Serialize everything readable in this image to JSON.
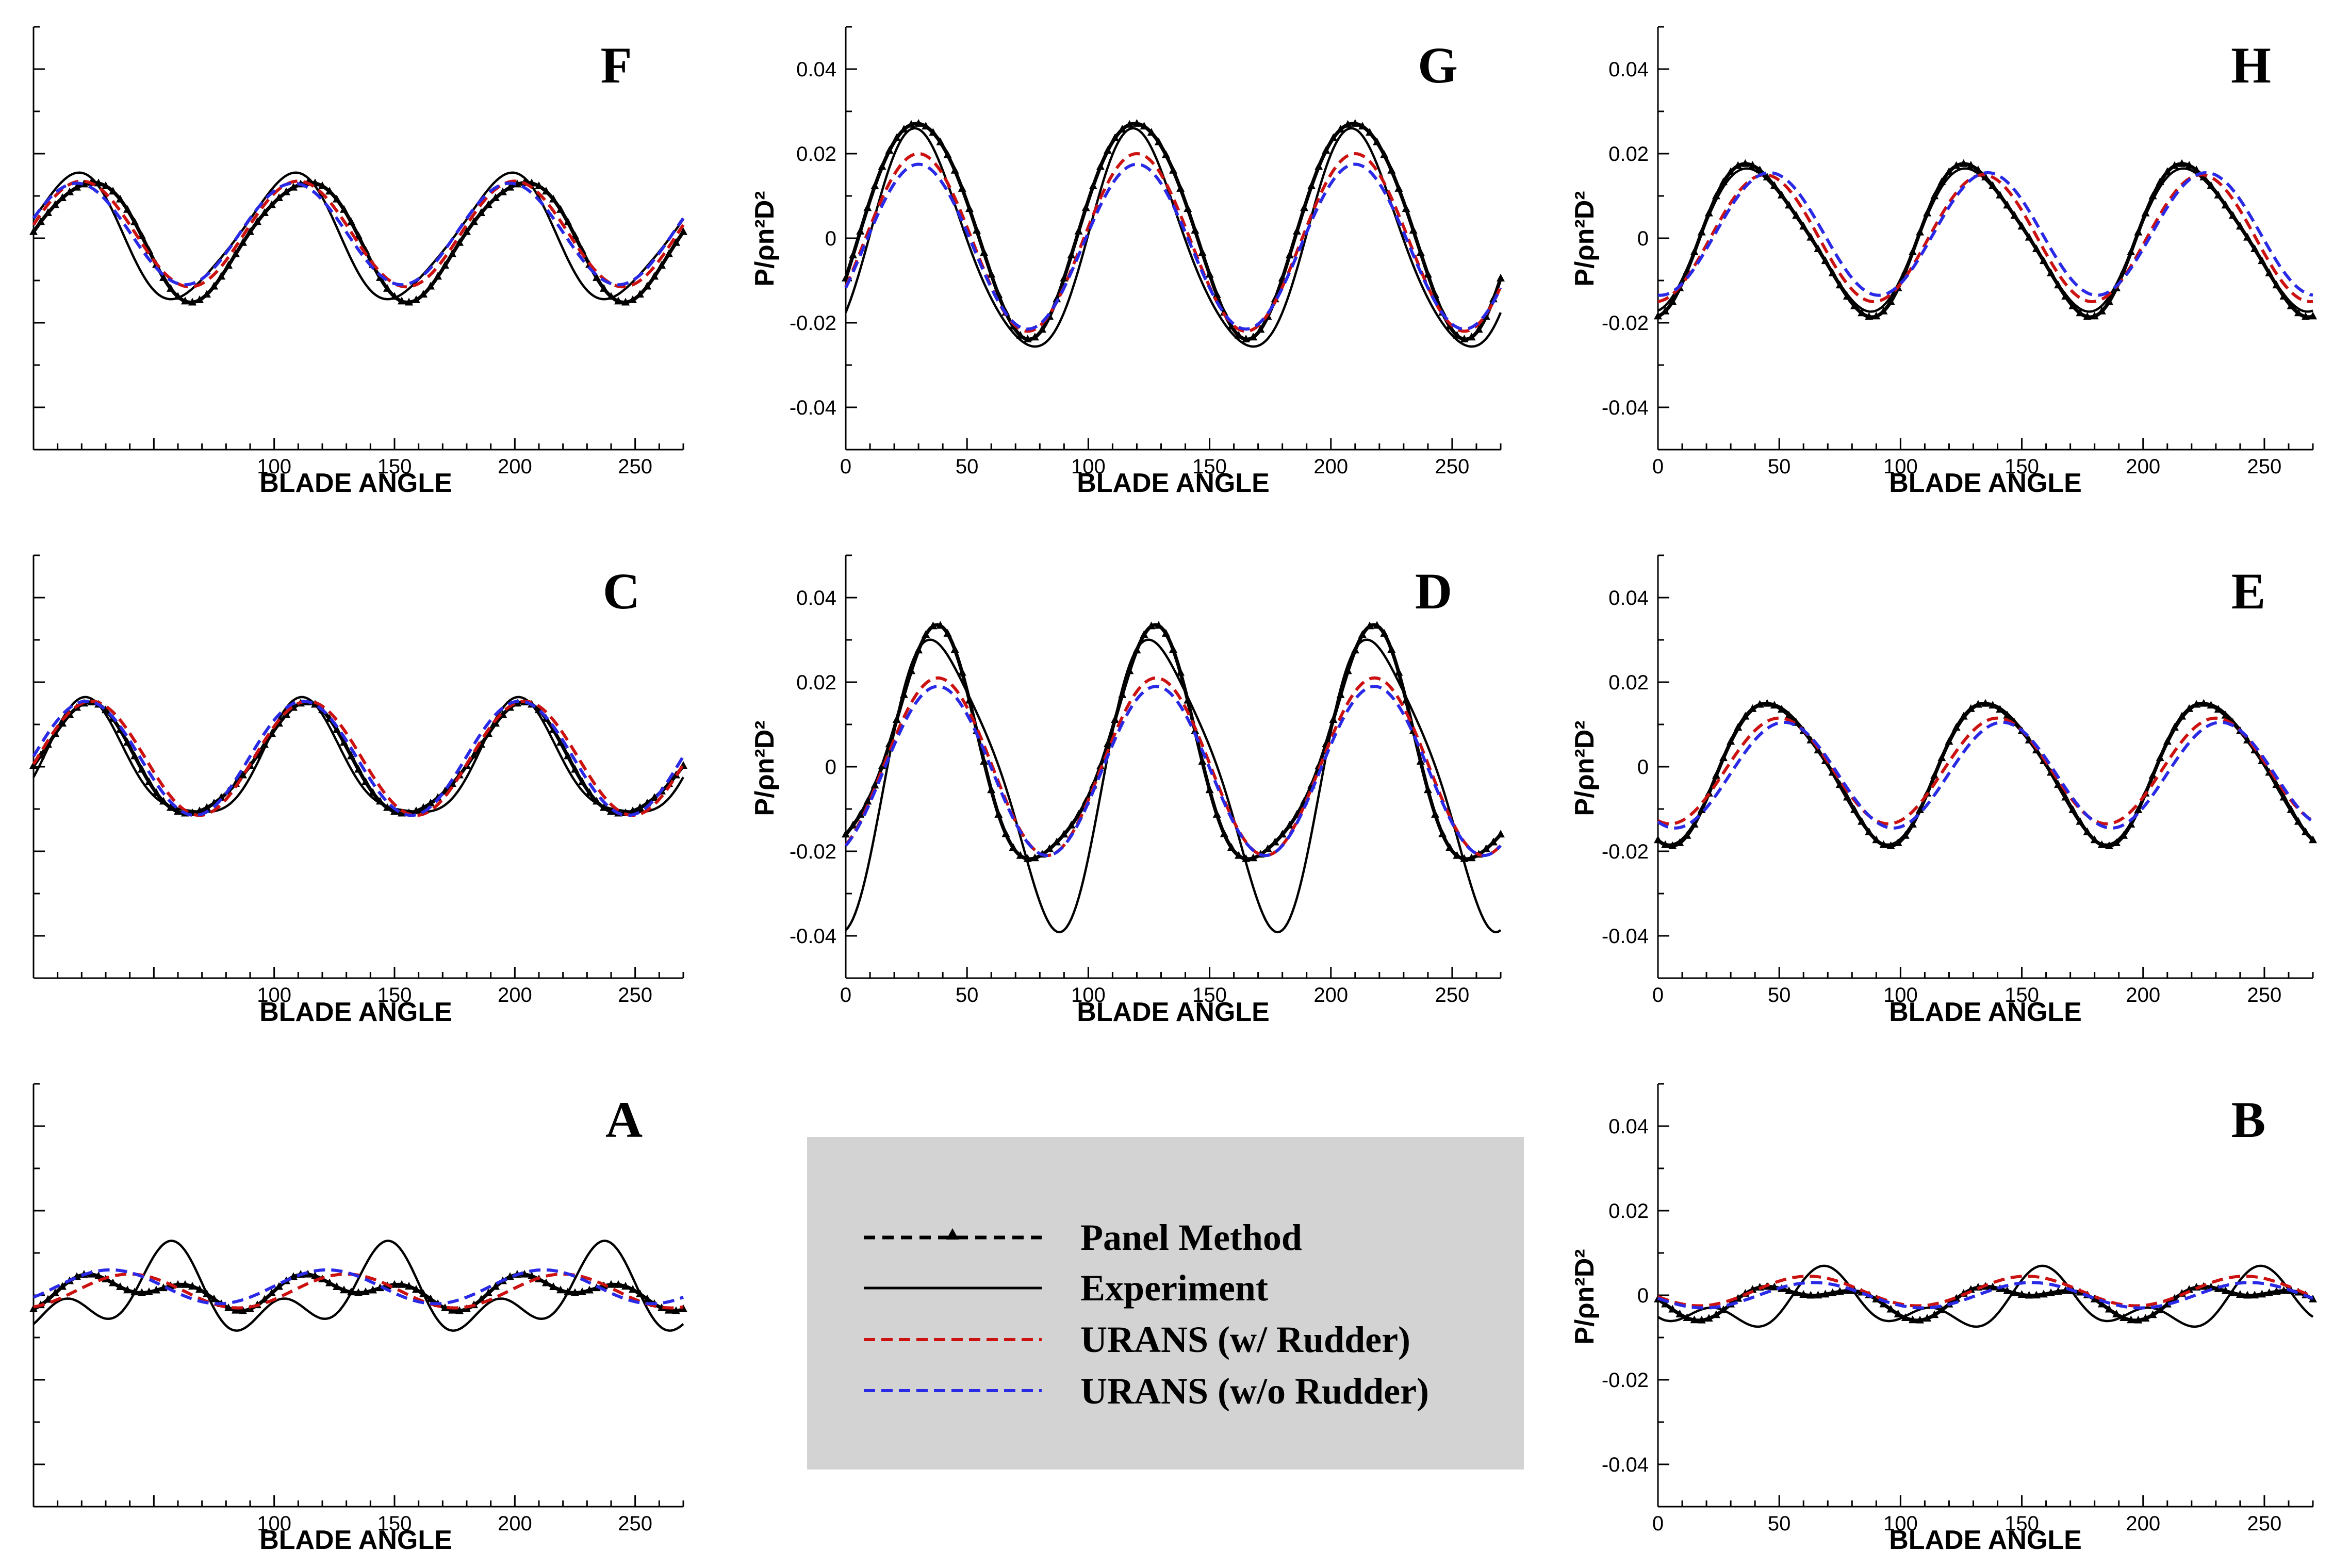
{
  "figure": {
    "legend": [
      {
        "key": "panel",
        "label": "Panel Method",
        "color": "#000000",
        "style": "dashed-triangle"
      },
      {
        "key": "exp",
        "label": "Experiment",
        "color": "#000000",
        "style": "solid"
      },
      {
        "key": "urans_r",
        "label": "URANS (w/ Rudder)",
        "color": "#cc1111",
        "style": "dashed"
      },
      {
        "key": "urans_nr",
        "label": "URANS (w/o Rudder)",
        "color": "#2a2ae6",
        "style": "dashed"
      }
    ]
  },
  "chart_data": [
    {
      "type": "line",
      "id": "F",
      "title": "F",
      "xlabel": "BLADE ANGLE",
      "ylabel": "",
      "xlim": [
        0,
        270
      ],
      "ylim": [
        -0.05,
        0.05
      ],
      "xticks": [
        100,
        150,
        200,
        250
      ],
      "yticks": [],
      "period": 90,
      "series": [
        {
          "name": "Panel Method",
          "harmonics": [
            [
              0.0,
              0
            ],
            [
              0.014,
              22
            ],
            [
              0.0015,
              84
            ]
          ]
        },
        {
          "name": "Experiment",
          "harmonics": [
            [
              0.0,
              0
            ],
            [
              0.0145,
              16
            ],
            [
              0.002,
              70
            ]
          ]
        },
        {
          "name": "URANS (w/ Rudder)",
          "harmonics": [
            [
              0.001,
              0
            ],
            [
              0.0125,
              20
            ]
          ]
        },
        {
          "name": "URANS (w/o Rudder)",
          "harmonics": [
            [
              0.001,
              0
            ],
            [
              0.012,
              18
            ]
          ]
        }
      ]
    },
    {
      "type": "line",
      "id": "G",
      "title": "G",
      "xlabel": "BLADE ANGLE",
      "ylabel": "P/ρn²D²",
      "xlim": [
        0,
        270
      ],
      "ylim": [
        -0.05,
        0.05
      ],
      "xticks": [
        0,
        50,
        100,
        150,
        200,
        250
      ],
      "yticks": [
        -0.04,
        -0.02,
        0,
        0.02,
        0.04
      ],
      "period": 90,
      "series": [
        {
          "name": "Panel Method",
          "harmonics": [
            [
              0.003,
              0
            ],
            [
              0.0255,
              30
            ],
            [
              0.0015,
              100
            ]
          ]
        },
        {
          "name": "Experiment",
          "harmonics": [
            [
              -0.002,
              0
            ],
            [
              0.0255,
              30
            ],
            [
              0.003,
              70
            ]
          ]
        },
        {
          "name": "URANS (w/ Rudder)",
          "harmonics": [
            [
              -0.001,
              0
            ],
            [
              0.021,
              30
            ]
          ]
        },
        {
          "name": "URANS (w/o Rudder)",
          "harmonics": [
            [
              -0.002,
              0
            ],
            [
              0.0195,
              30
            ]
          ]
        }
      ]
    },
    {
      "type": "line",
      "id": "H",
      "title": "H",
      "xlabel": "BLADE ANGLE",
      "ylabel": "P/ρn²D²",
      "xlim": [
        0,
        270
      ],
      "ylim": [
        -0.05,
        0.05
      ],
      "xticks": [
        0,
        50,
        100,
        150,
        200,
        250
      ],
      "yticks": [
        -0.04,
        -0.02,
        0,
        0.02,
        0.04
      ],
      "period": 90,
      "series": [
        {
          "name": "Panel Method",
          "harmonics": [
            [
              0.0,
              0
            ],
            [
              0.0175,
              40
            ],
            [
              0.0025,
              72
            ]
          ]
        },
        {
          "name": "Experiment",
          "harmonics": [
            [
              0.0,
              0
            ],
            [
              0.0165,
              40
            ],
            [
              0.002,
              72
            ]
          ]
        },
        {
          "name": "URANS (w/ Rudder)",
          "harmonics": [
            [
              0.0,
              0
            ],
            [
              0.015,
              44
            ]
          ]
        },
        {
          "name": "URANS (w/o Rudder)",
          "harmonics": [
            [
              0.001,
              0
            ],
            [
              0.0145,
              46
            ]
          ]
        }
      ]
    },
    {
      "type": "line",
      "id": "C",
      "title": "C",
      "xlabel": "BLADE ANGLE",
      "ylabel": "",
      "xlim": [
        0,
        270
      ],
      "ylim": [
        -0.05,
        0.05
      ],
      "xticks": [
        100,
        150,
        200,
        250
      ],
      "yticks": [],
      "period": 90,
      "series": [
        {
          "name": "Panel Method",
          "harmonics": [
            [
              0.001,
              0
            ],
            [
              0.013,
              22
            ],
            [
              0.0015,
              72
            ]
          ]
        },
        {
          "name": "Experiment",
          "harmonics": [
            [
              0.0,
              0
            ],
            [
              0.0135,
              22
            ],
            [
              0.003,
              66
            ]
          ]
        },
        {
          "name": "URANS (w/ Rudder)",
          "harmonics": [
            [
              0.002,
              0
            ],
            [
              0.0135,
              24
            ]
          ]
        },
        {
          "name": "URANS (w/o Rudder)",
          "harmonics": [
            [
              0.002,
              0
            ],
            [
              0.0135,
              22
            ]
          ]
        }
      ]
    },
    {
      "type": "line",
      "id": "D",
      "title": "D",
      "xlabel": "BLADE ANGLE",
      "ylabel": "P/ρn²D²",
      "xlim": [
        0,
        270
      ],
      "ylim": [
        -0.05,
        0.05
      ],
      "xticks": [
        0,
        50,
        100,
        150,
        200,
        250
      ],
      "yticks": [
        -0.04,
        -0.02,
        0,
        0.02,
        0.04
      ],
      "period": 90,
      "series": [
        {
          "name": "Panel Method",
          "harmonics": [
            [
              0.002,
              0
            ],
            [
              0.027,
              36
            ],
            [
              0.005,
              85
            ]
          ]
        },
        {
          "name": "Experiment",
          "harmonics": [
            [
              -0.002,
              0
            ],
            [
              0.033,
              40
            ],
            [
              0.006,
              70
            ]
          ]
        },
        {
          "name": "URANS (w/ Rudder)",
          "harmonics": [
            [
              0.0,
              0
            ],
            [
              0.021,
              38
            ]
          ]
        },
        {
          "name": "URANS (w/o Rudder)",
          "harmonics": [
            [
              -0.001,
              0
            ],
            [
              0.02,
              38
            ]
          ]
        }
      ]
    },
    {
      "type": "line",
      "id": "E",
      "title": "E",
      "xlabel": "BLADE ANGLE",
      "ylabel": "P/ρn²D²",
      "xlim": [
        0,
        270
      ],
      "ylim": [
        -0.05,
        0.05
      ],
      "xticks": [
        0,
        50,
        100,
        150,
        200,
        250
      ],
      "yticks": [
        -0.04,
        -0.02,
        0,
        0.02,
        0.04
      ],
      "period": 90,
      "series": [
        {
          "name": "Panel Method",
          "harmonics": [
            [
              -0.001,
              0
            ],
            [
              0.0165,
              48
            ],
            [
              0.002,
              78
            ]
          ]
        },
        {
          "name": "Experiment",
          "harmonics": [
            [
              -0.001,
              0
            ],
            [
              0.0165,
              48
            ],
            [
              0.0015,
              78
            ]
          ]
        },
        {
          "name": "URANS (w/ Rudder)",
          "harmonics": [
            [
              -0.001,
              0
            ],
            [
              0.0125,
              50
            ]
          ]
        },
        {
          "name": "URANS (w/o Rudder)",
          "harmonics": [
            [
              -0.002,
              0
            ],
            [
              0.0125,
              52
            ]
          ]
        }
      ]
    },
    {
      "type": "line",
      "id": "A",
      "title": "A",
      "xlabel": "BLADE ANGLE",
      "ylabel": "",
      "xlim": [
        0,
        270
      ],
      "ylim": [
        -0.05,
        0.05
      ],
      "xticks": [
        100,
        150,
        200,
        250
      ],
      "yticks": [],
      "period": 90,
      "series": [
        {
          "name": "Panel Method",
          "harmonics": [
            [
              0.001,
              0
            ],
            [
              0.0025,
              35
            ],
            [
              0.0025,
              20
            ]
          ]
        },
        {
          "name": "Experiment",
          "harmonics": [
            [
              0.0,
              0
            ],
            [
              0.007,
              55
            ],
            [
              0.006,
              58
            ]
          ]
        },
        {
          "name": "URANS (w/ Rudder)",
          "harmonics": [
            [
              0.001,
              0
            ],
            [
              0.004,
              40
            ]
          ]
        },
        {
          "name": "URANS (w/o Rudder)",
          "harmonics": [
            [
              0.002,
              0
            ],
            [
              0.004,
              32
            ]
          ]
        }
      ]
    },
    {
      "type": "line",
      "id": "B",
      "title": "B",
      "xlabel": "BLADE ANGLE",
      "ylabel": "P/ρn²D²",
      "xlim": [
        0,
        270
      ],
      "ylim": [
        -0.05,
        0.05
      ],
      "xticks": [
        0,
        50,
        100,
        150,
        200,
        250
      ],
      "yticks": [
        -0.04,
        -0.02,
        0,
        0.02,
        0.04
      ],
      "period": 90,
      "series": [
        {
          "name": "Panel Method",
          "harmonics": [
            [
              -0.001,
              0
            ],
            [
              0.003,
              60
            ],
            [
              0.002,
              40
            ]
          ]
        },
        {
          "name": "Experiment",
          "harmonics": [
            [
              -0.002,
              0
            ],
            [
              0.005,
              70
            ],
            [
              0.004,
              68
            ]
          ]
        },
        {
          "name": "URANS (w/ Rudder)",
          "harmonics": [
            [
              0.001,
              0
            ],
            [
              0.0035,
              62
            ]
          ]
        },
        {
          "name": "URANS (w/o Rudder)",
          "harmonics": [
            [
              0.0,
              0
            ],
            [
              0.003,
              64
            ]
          ]
        }
      ]
    }
  ]
}
